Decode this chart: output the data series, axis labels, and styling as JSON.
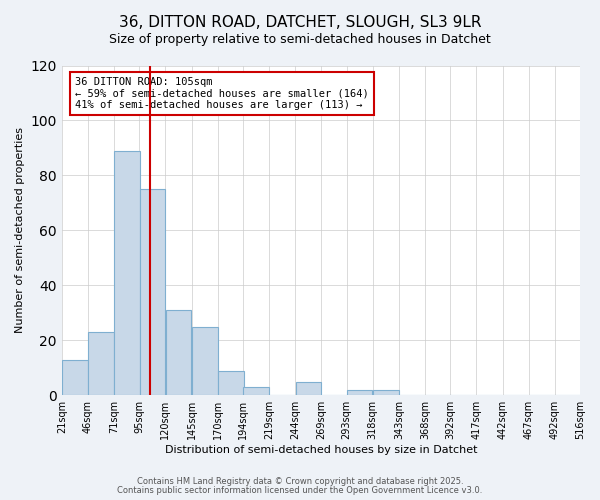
{
  "title": "36, DITTON ROAD, DATCHET, SLOUGH, SL3 9LR",
  "subtitle": "Size of property relative to semi-detached houses in Datchet",
  "xlabel": "Distribution of semi-detached houses by size in Datchet",
  "ylabel": "Number of semi-detached properties",
  "bar_color": "#c8d8e8",
  "bar_edge_color": "#7fafd0",
  "vline_x": 105,
  "vline_color": "#cc0000",
  "annotation_title": "36 DITTON ROAD: 105sqm",
  "annotation_line1": "← 59% of semi-detached houses are smaller (164)",
  "annotation_line2": "41% of semi-detached houses are larger (113) →",
  "annotation_box_color": "#cc0000",
  "bin_edges": [
    21,
    46,
    71,
    95,
    120,
    145,
    170,
    194,
    219,
    244,
    269,
    293,
    318,
    343,
    368,
    392,
    417,
    442,
    467,
    492,
    516
  ],
  "bin_labels": [
    "21sqm",
    "46sqm",
    "71sqm",
    "95sqm",
    "120sqm",
    "145sqm",
    "170sqm",
    "194sqm",
    "219sqm",
    "244sqm",
    "269sqm",
    "293sqm",
    "318sqm",
    "343sqm",
    "368sqm",
    "392sqm",
    "417sqm",
    "442sqm",
    "467sqm",
    "492sqm",
    "516sqm"
  ],
  "counts": [
    13,
    23,
    89,
    75,
    31,
    25,
    9,
    3,
    0,
    5,
    0,
    2,
    2,
    0,
    0,
    0,
    0,
    0,
    0,
    0
  ],
  "ylim": [
    0,
    120
  ],
  "yticks": [
    0,
    20,
    40,
    60,
    80,
    100,
    120
  ],
  "footer1": "Contains HM Land Registry data © Crown copyright and database right 2025.",
  "footer2": "Contains public sector information licensed under the Open Government Licence v3.0.",
  "background_color": "#eef2f7",
  "plot_bg_color": "#ffffff"
}
